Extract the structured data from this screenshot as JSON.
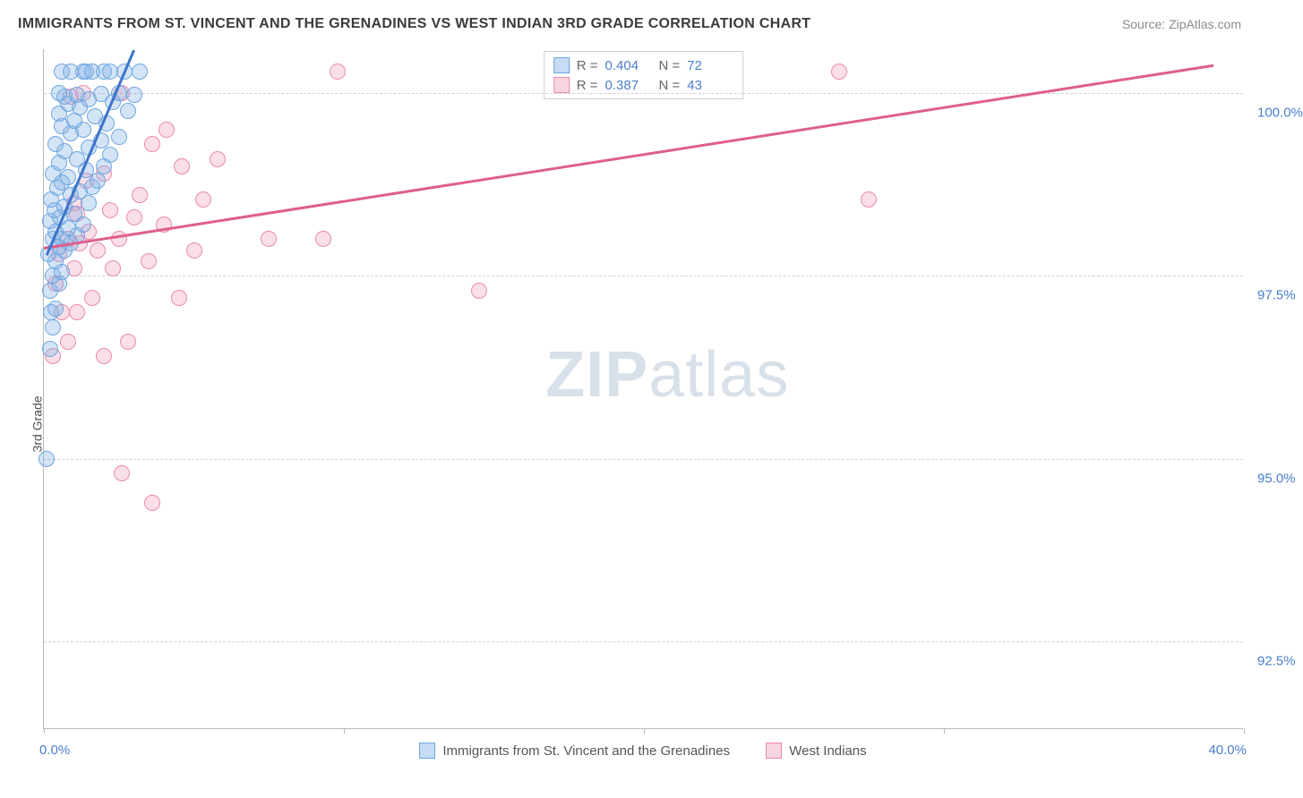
{
  "title": "IMMIGRANTS FROM ST. VINCENT AND THE GRENADINES VS WEST INDIAN 3RD GRADE CORRELATION CHART",
  "source_label": "Source: ZipAtlas.com",
  "ylabel": "3rd Grade",
  "watermark": {
    "left": "ZIP",
    "right": "atlas"
  },
  "axes": {
    "xlim": [
      0,
      40
    ],
    "ylim": [
      91.3,
      100.6
    ],
    "xticks": [
      0,
      10,
      20,
      30,
      40
    ],
    "xtick_labels": {
      "0": "0.0%",
      "40": "40.0%"
    },
    "yticks": [
      92.5,
      95.0,
      97.5,
      100.0
    ],
    "ytick_labels": [
      "92.5%",
      "95.0%",
      "97.5%",
      "100.0%"
    ]
  },
  "legend_top": {
    "rows": [
      {
        "swatch": "blue",
        "r_label": "R =",
        "r": "0.404",
        "n_label": "N =",
        "n": "72"
      },
      {
        "swatch": "pink",
        "r_label": "R =",
        "r": "0.387",
        "n_label": "N =",
        "n": "43"
      }
    ]
  },
  "legend_bottom": [
    {
      "swatch": "blue",
      "label": "Immigrants from St. Vincent and the Grenadines"
    },
    {
      "swatch": "pink",
      "label": "West Indians"
    }
  ],
  "series": {
    "blue": {
      "color_fill": "rgba(128,178,230,0.35)",
      "color_stroke": "#6ea6df",
      "trend": {
        "x1": 0.1,
        "y1": 97.8,
        "x2": 3.0,
        "y2": 100.6,
        "color": "#3d74c8"
      },
      "points": [
        [
          0.1,
          95.0
        ],
        [
          0.2,
          96.5
        ],
        [
          0.3,
          96.8
        ],
        [
          0.25,
          97.0
        ],
        [
          0.4,
          97.05
        ],
        [
          0.2,
          97.3
        ],
        [
          0.5,
          97.4
        ],
        [
          0.3,
          97.5
        ],
        [
          0.6,
          97.55
        ],
        [
          0.4,
          97.7
        ],
        [
          0.15,
          97.8
        ],
        [
          0.7,
          97.85
        ],
        [
          0.5,
          97.9
        ],
        [
          0.9,
          97.95
        ],
        [
          0.3,
          98.0
        ],
        [
          0.6,
          98.0
        ],
        [
          1.1,
          98.05
        ],
        [
          0.4,
          98.1
        ],
        [
          0.8,
          98.15
        ],
        [
          1.3,
          98.2
        ],
        [
          0.2,
          98.25
        ],
        [
          0.55,
          98.3
        ],
        [
          1.0,
          98.35
        ],
        [
          0.35,
          98.4
        ],
        [
          0.7,
          98.45
        ],
        [
          1.5,
          98.5
        ],
        [
          0.25,
          98.55
        ],
        [
          0.9,
          98.6
        ],
        [
          1.2,
          98.65
        ],
        [
          0.45,
          98.7
        ],
        [
          1.6,
          98.72
        ],
        [
          0.6,
          98.78
        ],
        [
          1.8,
          98.8
        ],
        [
          0.8,
          98.85
        ],
        [
          0.3,
          98.9
        ],
        [
          1.4,
          98.95
        ],
        [
          2.0,
          99.0
        ],
        [
          0.5,
          99.05
        ],
        [
          1.1,
          99.1
        ],
        [
          2.2,
          99.15
        ],
        [
          0.7,
          99.2
        ],
        [
          1.5,
          99.25
        ],
        [
          0.4,
          99.3
        ],
        [
          1.9,
          99.35
        ],
        [
          2.5,
          99.4
        ],
        [
          0.9,
          99.45
        ],
        [
          1.3,
          99.5
        ],
        [
          0.6,
          99.55
        ],
        [
          2.1,
          99.58
        ],
        [
          1.0,
          99.62
        ],
        [
          1.7,
          99.68
        ],
        [
          0.5,
          99.72
        ],
        [
          2.8,
          99.75
        ],
        [
          1.2,
          99.8
        ],
        [
          0.8,
          99.85
        ],
        [
          2.3,
          99.88
        ],
        [
          1.5,
          99.92
        ],
        [
          0.7,
          99.95
        ],
        [
          3.0,
          99.97
        ],
        [
          1.1,
          99.98
        ],
        [
          1.9,
          99.99
        ],
        [
          0.5,
          100.0
        ],
        [
          2.5,
          100.0
        ],
        [
          1.3,
          100.3
        ],
        [
          0.9,
          100.3
        ],
        [
          2.0,
          100.3
        ],
        [
          1.6,
          100.3
        ],
        [
          2.7,
          100.3
        ],
        [
          0.6,
          100.3
        ],
        [
          1.4,
          100.3
        ],
        [
          2.2,
          100.3
        ],
        [
          3.2,
          100.3
        ]
      ]
    },
    "pink": {
      "color_fill": "rgba(240,150,180,0.30)",
      "color_stroke": "#e98aac",
      "trend": {
        "x1": 0.0,
        "y1": 97.9,
        "x2": 39.0,
        "y2": 100.4,
        "color": "#de5f8c"
      },
      "points": [
        [
          3.6,
          94.4
        ],
        [
          2.6,
          94.8
        ],
        [
          0.3,
          96.4
        ],
        [
          2.0,
          96.4
        ],
        [
          0.8,
          96.6
        ],
        [
          2.8,
          96.6
        ],
        [
          0.6,
          97.0
        ],
        [
          1.1,
          97.0
        ],
        [
          1.6,
          97.2
        ],
        [
          4.5,
          97.2
        ],
        [
          0.4,
          97.4
        ],
        [
          14.5,
          97.3
        ],
        [
          1.0,
          97.6
        ],
        [
          2.3,
          97.6
        ],
        [
          3.5,
          97.7
        ],
        [
          0.5,
          97.8
        ],
        [
          1.8,
          97.85
        ],
        [
          5.0,
          97.85
        ],
        [
          1.2,
          97.95
        ],
        [
          0.8,
          98.0
        ],
        [
          2.5,
          98.0
        ],
        [
          7.5,
          98.0
        ],
        [
          9.3,
          98.0
        ],
        [
          1.5,
          98.1
        ],
        [
          4.0,
          98.2
        ],
        [
          3.0,
          98.3
        ],
        [
          1.1,
          98.35
        ],
        [
          2.2,
          98.4
        ],
        [
          1.0,
          98.5
        ],
        [
          5.3,
          98.55
        ],
        [
          3.2,
          98.6
        ],
        [
          27.5,
          98.55
        ],
        [
          1.4,
          98.8
        ],
        [
          2.0,
          98.9
        ],
        [
          4.6,
          99.0
        ],
        [
          5.8,
          99.1
        ],
        [
          3.6,
          99.3
        ],
        [
          4.1,
          99.5
        ],
        [
          26.5,
          100.3
        ],
        [
          9.8,
          100.3
        ],
        [
          0.9,
          99.95
        ],
        [
          1.3,
          100.0
        ],
        [
          2.6,
          100.0
        ]
      ]
    }
  }
}
